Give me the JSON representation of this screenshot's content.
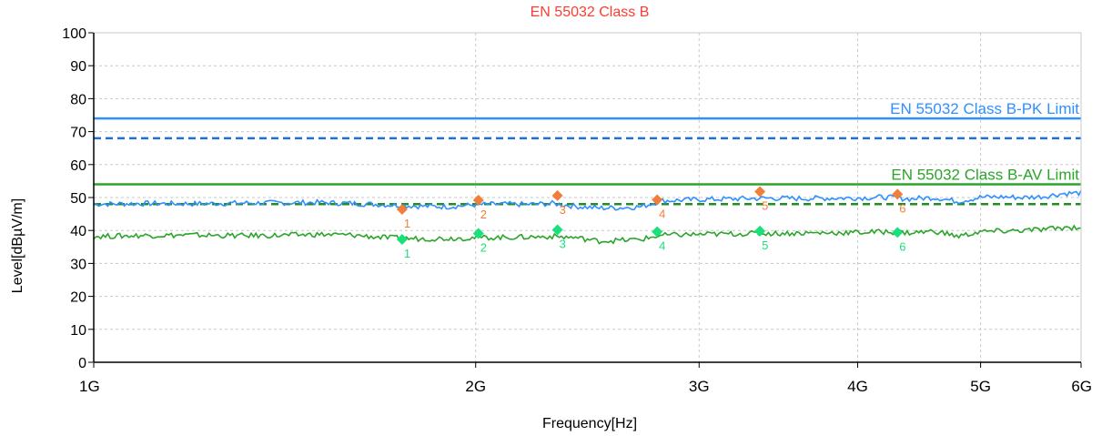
{
  "chart_data": {
    "type": "line",
    "title": "EN 55032 Class B",
    "xlabel": "Frequency[Hz]",
    "ylabel": "Level[dBµV/m]",
    "x_scale": "log",
    "xlim": [
      1000000000,
      6000000000
    ],
    "ylim": [
      0,
      100
    ],
    "grid": true,
    "x_ticks": [
      {
        "value": 1000000000,
        "label": "1G"
      },
      {
        "value": 2000000000,
        "label": "2G"
      },
      {
        "value": 3000000000,
        "label": "3G"
      },
      {
        "value": 4000000000,
        "label": "4G"
      },
      {
        "value": 5000000000,
        "label": "5G"
      },
      {
        "value": 6000000000,
        "label": "6G"
      }
    ],
    "y_ticks": [
      0,
      10,
      20,
      30,
      40,
      50,
      60,
      70,
      80,
      90,
      100
    ],
    "limit_lines": [
      {
        "label": "EN 55032 Class B-PK Limit",
        "value": 74,
        "color": "#2f8fff",
        "style": "solid"
      },
      {
        "label": "",
        "value": 68,
        "color": "#1f6fd6",
        "style": "dashed"
      },
      {
        "label": "EN 55032 Class B-AV Limit",
        "value": 54,
        "color": "#2aa52a",
        "style": "solid"
      },
      {
        "label": "",
        "value": 48,
        "color": "#1f8f1f",
        "style": "dashed"
      }
    ],
    "series": [
      {
        "color": "#2f8fff",
        "x": [
          1000000000,
          1100000000,
          1200000000,
          1300000000,
          1400000000,
          1500000000,
          1600000000,
          1700000000,
          1800000000,
          1900000000,
          2000000000,
          2100000000,
          2200000000,
          2300000000,
          2400000000,
          2500000000,
          2600000000,
          2700000000,
          2800000000,
          2900000000,
          3000000000,
          3200000000,
          3400000000,
          3600000000,
          3800000000,
          4000000000,
          4200000000,
          4400000000,
          4600000000,
          4800000000,
          5000000000,
          5200000000,
          5400000000,
          5600000000,
          5800000000,
          6000000000
        ],
        "y": [
          48,
          48.2,
          48.1,
          48.3,
          48.4,
          48.5,
          48.2,
          47.8,
          47.4,
          47.2,
          47.8,
          48.0,
          47.9,
          48.2,
          47.3,
          46.8,
          46.9,
          47.2,
          49.0,
          49.2,
          49.4,
          49.6,
          49.8,
          49.7,
          49.8,
          49.9,
          50.1,
          49.6,
          50.0,
          48.8,
          50.1,
          50.2,
          50.0,
          50.3,
          51.2,
          51.4
        ]
      },
      {
        "color": "#2aa52a",
        "x": [
          1000000000,
          1100000000,
          1200000000,
          1300000000,
          1400000000,
          1500000000,
          1600000000,
          1700000000,
          1800000000,
          1900000000,
          2000000000,
          2100000000,
          2200000000,
          2300000000,
          2400000000,
          2500000000,
          2600000000,
          2700000000,
          2800000000,
          2900000000,
          3000000000,
          3200000000,
          3400000000,
          3600000000,
          3800000000,
          4000000000,
          4200000000,
          4400000000,
          4600000000,
          4800000000,
          5000000000,
          5200000000,
          5400000000,
          5600000000,
          5800000000,
          6000000000
        ],
        "y": [
          38.2,
          38.5,
          38.6,
          38.4,
          38.5,
          38.8,
          38.6,
          37.8,
          37.5,
          37.6,
          37.8,
          37.9,
          38.0,
          38.2,
          37.8,
          36.8,
          37.0,
          37.3,
          38.5,
          38.7,
          38.8,
          39.0,
          39.1,
          39.2,
          39.3,
          39.4,
          39.6,
          39.3,
          39.8,
          38.2,
          39.6,
          39.8,
          40.0,
          40.3,
          40.8,
          41.0
        ]
      }
    ],
    "markers": [
      {
        "series": "peak",
        "label": "1",
        "x": 1750000000,
        "y": 46.4,
        "color": "#f07f3c"
      },
      {
        "series": "peak",
        "label": "2",
        "x": 2010000000,
        "y": 49.2,
        "color": "#f07f3c"
      },
      {
        "series": "peak",
        "label": "3",
        "x": 2320000000,
        "y": 50.6,
        "color": "#f07f3c"
      },
      {
        "series": "peak",
        "label": "4",
        "x": 2780000000,
        "y": 49.3,
        "color": "#f07f3c"
      },
      {
        "series": "peak",
        "label": "5",
        "x": 3350000000,
        "y": 51.8,
        "color": "#f07f3c"
      },
      {
        "series": "peak",
        "label": "6",
        "x": 4300000000,
        "y": 51.0,
        "color": "#f07f3c"
      },
      {
        "series": "avg",
        "label": "1",
        "x": 1750000000,
        "y": 37.3,
        "color": "#19e07a"
      },
      {
        "series": "avg",
        "label": "2",
        "x": 2010000000,
        "y": 39.1,
        "color": "#19e07a"
      },
      {
        "series": "avg",
        "label": "3",
        "x": 2320000000,
        "y": 40.2,
        "color": "#19e07a"
      },
      {
        "series": "avg",
        "label": "4",
        "x": 2780000000,
        "y": 39.6,
        "color": "#19e07a"
      },
      {
        "series": "avg",
        "label": "5",
        "x": 3350000000,
        "y": 39.8,
        "color": "#19e07a"
      },
      {
        "series": "avg",
        "label": "6",
        "x": 4300000000,
        "y": 39.4,
        "color": "#19e07a"
      }
    ],
    "colors": {
      "title": "#ff3b30",
      "grid": "#c8c8c8",
      "axis": "#000000"
    }
  }
}
